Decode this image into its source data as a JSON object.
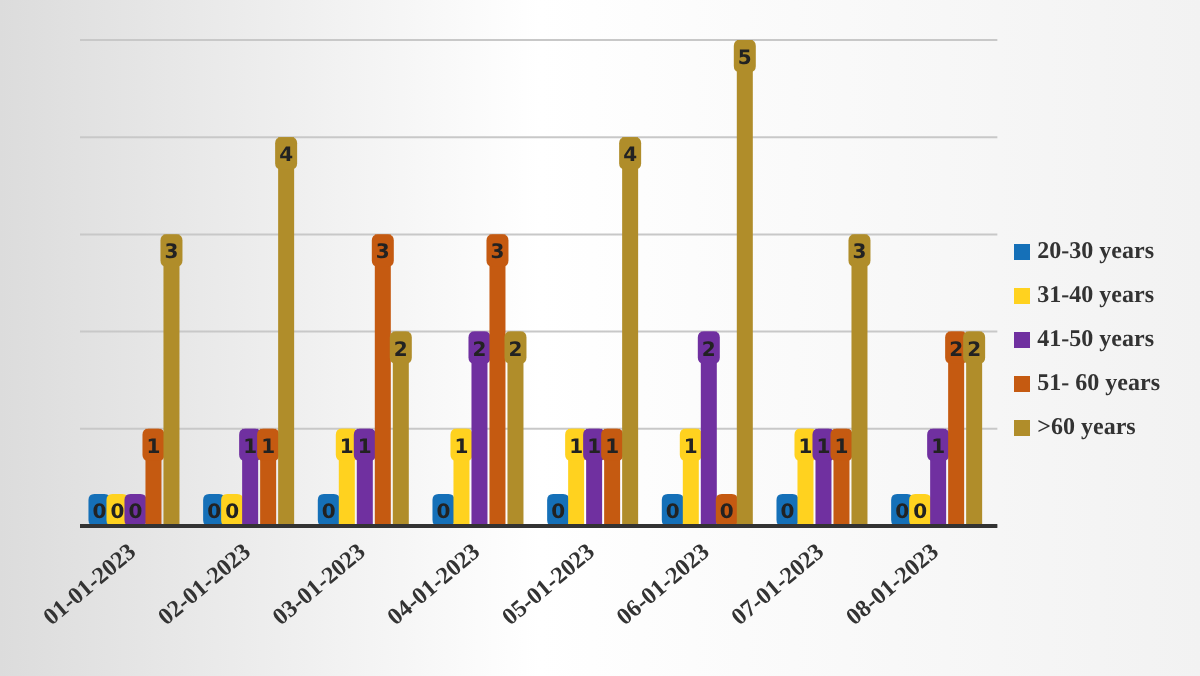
{
  "chart_data": {
    "type": "bar",
    "categories": [
      "01-01-2023",
      "02-01-2023",
      "03-01-2023",
      "04-01-2023",
      "05-01-2023",
      "06-01-2023",
      "07-01-2023",
      "08-01-2023"
    ],
    "series": [
      {
        "name": "20-30 years",
        "color": "#1570b8",
        "values": [
          0,
          0,
          0,
          0,
          0,
          0,
          0,
          0
        ]
      },
      {
        "name": "31-40 years",
        "color": "#ffd21f",
        "values": [
          0,
          0,
          1,
          1,
          1,
          1,
          1,
          0
        ]
      },
      {
        "name": "41-50 years",
        "color": "#7030a0",
        "values": [
          0,
          1,
          1,
          2,
          1,
          2,
          1,
          1
        ]
      },
      {
        "name": "51- 60 years",
        "color": "#c55a11",
        "values": [
          1,
          1,
          3,
          3,
          1,
          0,
          1,
          2
        ]
      },
      {
        "name": ">60 years",
        "color": "#b08d2a",
        "values": [
          3,
          4,
          2,
          2,
          4,
          5,
          3,
          2
        ]
      }
    ],
    "ylim": [
      0,
      5
    ],
    "yticks": [
      0,
      1,
      2,
      3,
      4,
      5
    ],
    "tick_labels": "x",
    "grid": "y",
    "legend": "right",
    "data_labels": true
  }
}
